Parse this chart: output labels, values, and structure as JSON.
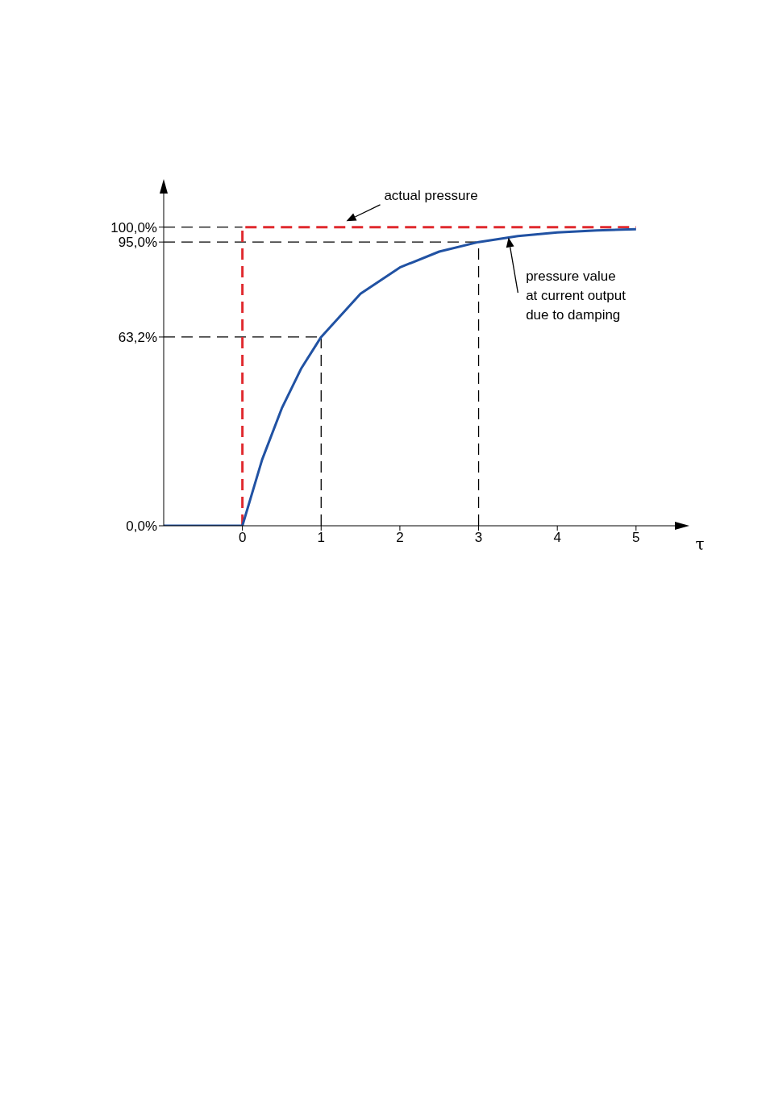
{
  "chart_data": {
    "type": "line",
    "xlabel": "τ",
    "xlim": [
      -1,
      5.35
    ],
    "ylim": [
      0,
      108
    ],
    "xticks": [
      0,
      1,
      2,
      3,
      4,
      5
    ],
    "yticks": [
      {
        "value": 0,
        "label": "0,0%"
      },
      {
        "value": 63.2,
        "label": "63,2%"
      },
      {
        "value": 95,
        "label": "95,0%"
      },
      {
        "value": 100,
        "label": "100,0%"
      }
    ],
    "series": [
      {
        "name": "actual pressure",
        "color": "#e02a2f",
        "line_style": "dashed",
        "x": [
          0,
          0,
          5
        ],
        "values": [
          0,
          100,
          100
        ]
      },
      {
        "name": "pressure value at current output due to damping",
        "color": "#2152a3",
        "line_style": "solid",
        "x": [
          -1,
          0,
          0.25,
          0.5,
          0.75,
          1,
          1.5,
          2,
          2.5,
          3,
          3.5,
          4,
          4.5,
          5
        ],
        "values": [
          0,
          0,
          22.1,
          39.3,
          52.8,
          63.2,
          77.7,
          86.5,
          91.8,
          95,
          97,
          98.2,
          98.9,
          99.3
        ]
      }
    ],
    "ref_lines": [
      {
        "axis": "y",
        "value": 100,
        "color": "#000000",
        "line_style": "dashed"
      },
      {
        "axis": "y",
        "value": 95,
        "color": "#000000",
        "line_style": "dashed"
      },
      {
        "axis": "y",
        "value": 63.2,
        "color": "#000000",
        "line_style": "dashed"
      },
      {
        "axis": "x",
        "value": 1,
        "color": "#000000",
        "line_style": "dashed"
      },
      {
        "axis": "x",
        "value": 3,
        "color": "#000000",
        "line_style": "dashed"
      }
    ],
    "grid": false,
    "marker": "none"
  }
}
